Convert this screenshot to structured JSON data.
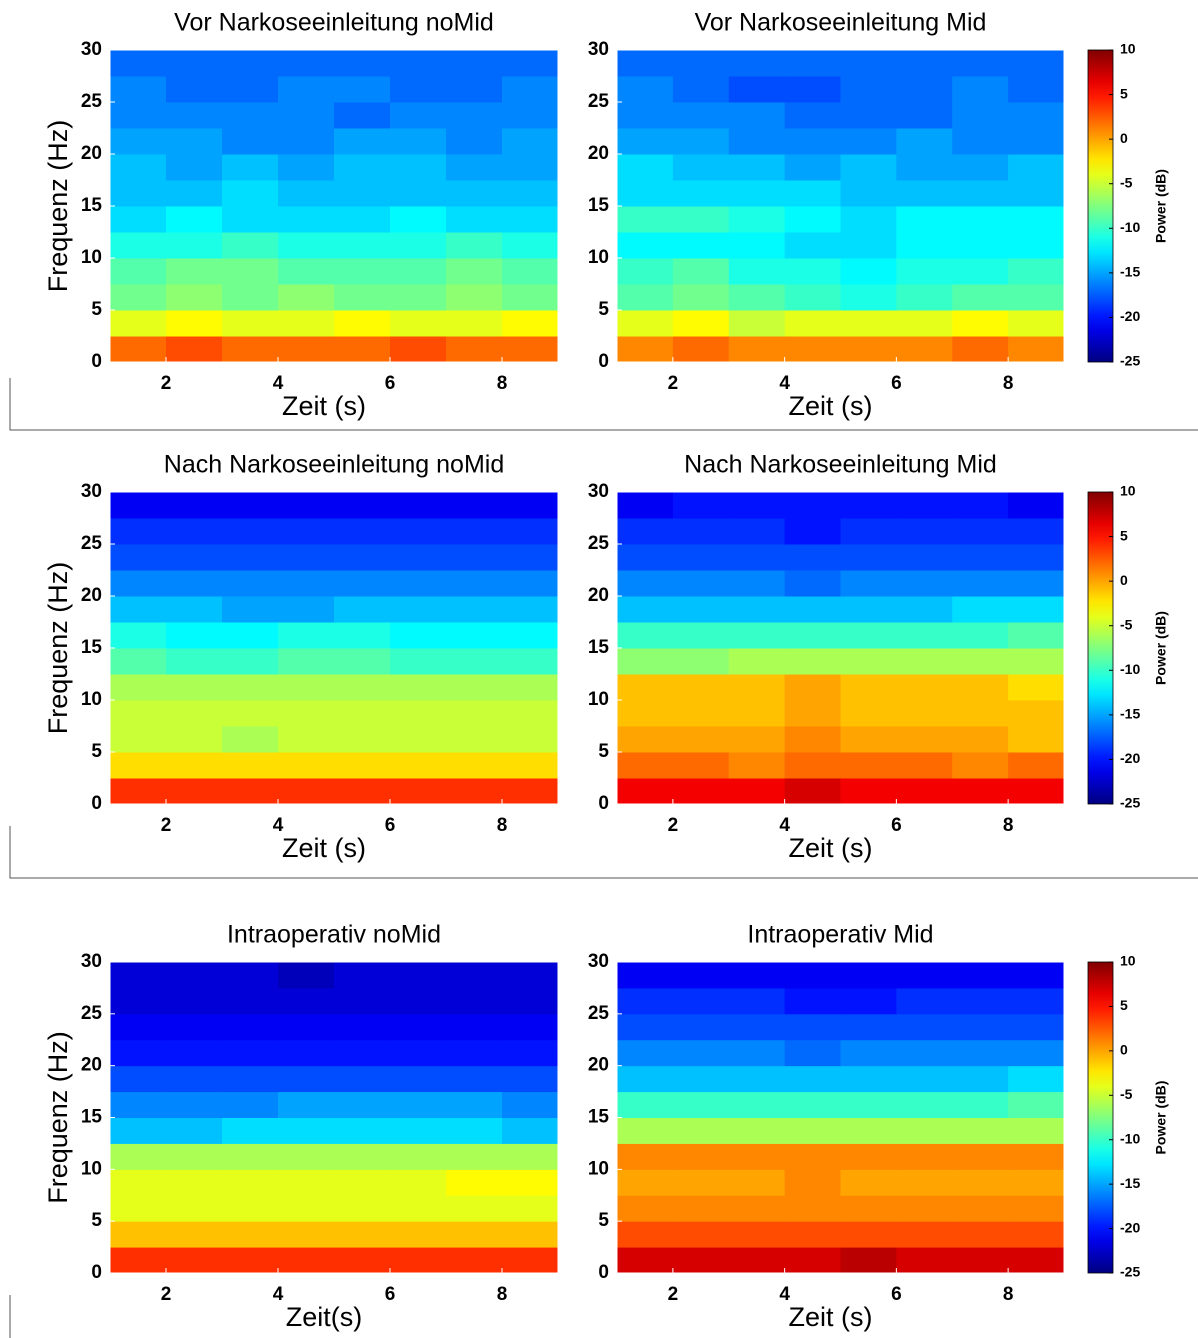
{
  "chart_data": [
    {
      "type": "heatmap",
      "title": "Vor Narkoseeinleitung noMid",
      "xlabel": "Zeit (s)",
      "ylabel": "Frequenz (Hz)",
      "colormap": "jet",
      "clim": [
        -25,
        10
      ],
      "x": [
        1.5,
        2.5,
        3.5,
        4.5,
        5.5,
        6.5,
        7.5,
        8.5
      ],
      "y": [
        1.25,
        3.75,
        6.25,
        8.75,
        11.25,
        13.75,
        16.25,
        18.75,
        21.25,
        23.75,
        26.25,
        28.75
      ],
      "xlim": [
        1,
        9
      ],
      "xticks": [
        2,
        4,
        6,
        8
      ],
      "ylim": [
        0,
        30
      ],
      "yticks": [
        0,
        5,
        10,
        15,
        20,
        25,
        30
      ],
      "values": [
        [
          2,
          3,
          2,
          2,
          2,
          3,
          2,
          2
        ],
        [
          -4,
          -3,
          -4,
          -4,
          -3,
          -4,
          -4,
          -3
        ],
        [
          -8,
          -7,
          -8,
          -7,
          -8,
          -8,
          -7,
          -8
        ],
        [
          -9,
          -8,
          -8,
          -9,
          -9,
          -9,
          -8,
          -9
        ],
        [
          -11,
          -11,
          -10,
          -11,
          -11,
          -11,
          -10,
          -11
        ],
        [
          -13,
          -12,
          -13,
          -13,
          -13,
          -12,
          -13,
          -13
        ],
        [
          -14,
          -14,
          -13,
          -14,
          -14,
          -14,
          -14,
          -14
        ],
        [
          -14,
          -15,
          -14,
          -15,
          -14,
          -14,
          -15,
          -15
        ],
        [
          -15,
          -15,
          -16,
          -16,
          -15,
          -15,
          -16,
          -15
        ],
        [
          -16,
          -16,
          -16,
          -16,
          -17,
          -16,
          -16,
          -16
        ],
        [
          -16,
          -17,
          -17,
          -16,
          -16,
          -17,
          -17,
          -16
        ],
        [
          -17,
          -17,
          -17,
          -17,
          -17,
          -17,
          -17,
          -17
        ]
      ]
    },
    {
      "type": "heatmap",
      "title": "Vor Narkoseeinleitung Mid",
      "xlabel": "Zeit (s)",
      "colormap": "jet",
      "clim": [
        -25,
        10
      ],
      "x": [
        1.5,
        2.5,
        3.5,
        4.5,
        5.5,
        6.5,
        7.5,
        8.5
      ],
      "y": [
        1.25,
        3.75,
        6.25,
        8.75,
        11.25,
        13.75,
        16.25,
        18.75,
        21.25,
        23.75,
        26.25,
        28.75
      ],
      "xlim": [
        1,
        9
      ],
      "xticks": [
        2,
        4,
        6,
        8
      ],
      "ylim": [
        0,
        30
      ],
      "yticks": [
        0,
        5,
        10,
        15,
        20,
        25,
        30
      ],
      "colorbar": {
        "label": "Power (dB)",
        "lim": [
          -25,
          10
        ],
        "ticks": [
          -25,
          -20,
          -15,
          -10,
          -5,
          0,
          5,
          10
        ]
      },
      "values": [
        [
          1,
          2,
          1,
          1,
          1,
          1,
          2,
          1
        ],
        [
          -4,
          -3,
          -5,
          -4,
          -4,
          -4,
          -3,
          -4
        ],
        [
          -9,
          -8,
          -9,
          -10,
          -11,
          -10,
          -9,
          -9
        ],
        [
          -10,
          -9,
          -11,
          -11,
          -12,
          -11,
          -11,
          -10
        ],
        [
          -12,
          -12,
          -12,
          -13,
          -13,
          -12,
          -12,
          -12
        ],
        [
          -10,
          -10,
          -11,
          -12,
          -13,
          -12,
          -12,
          -12
        ],
        [
          -13,
          -13,
          -13,
          -13,
          -14,
          -14,
          -14,
          -14
        ],
        [
          -13,
          -14,
          -14,
          -15,
          -14,
          -15,
          -15,
          -14
        ],
        [
          -15,
          -15,
          -16,
          -16,
          -16,
          -15,
          -16,
          -16
        ],
        [
          -16,
          -16,
          -16,
          -17,
          -17,
          -17,
          -16,
          -16
        ],
        [
          -16,
          -17,
          -18,
          -18,
          -17,
          -17,
          -16,
          -17
        ],
        [
          -17,
          -17,
          -17,
          -17,
          -17,
          -17,
          -17,
          -17
        ]
      ]
    },
    {
      "type": "heatmap",
      "title": "Nach Narkoseeinleitung noMid",
      "xlabel": "Zeit (s)",
      "ylabel": "Frequenz (Hz)",
      "colormap": "jet",
      "clim": [
        -25,
        10
      ],
      "x": [
        1.5,
        2.5,
        3.5,
        4.5,
        5.5,
        6.5,
        7.5,
        8.5
      ],
      "y": [
        1.25,
        3.75,
        6.25,
        8.75,
        11.25,
        13.75,
        16.25,
        18.75,
        21.25,
        23.75,
        26.25,
        28.75
      ],
      "xlim": [
        1,
        9
      ],
      "xticks": [
        2,
        4,
        6,
        8
      ],
      "ylim": [
        0,
        30
      ],
      "yticks": [
        0,
        5,
        10,
        15,
        20,
        25,
        30
      ],
      "values": [
        [
          4,
          4,
          4,
          4,
          4,
          4,
          4,
          4
        ],
        [
          -2,
          -2,
          -2,
          -2,
          -2,
          -2,
          -2,
          -2
        ],
        [
          -5,
          -5,
          -6,
          -5,
          -5,
          -5,
          -5,
          -5
        ],
        [
          -5,
          -5,
          -5,
          -5,
          -5,
          -5,
          -5,
          -5
        ],
        [
          -6,
          -6,
          -6,
          -6,
          -6,
          -6,
          -6,
          -6
        ],
        [
          -9,
          -10,
          -10,
          -9,
          -9,
          -10,
          -10,
          -10
        ],
        [
          -11,
          -12,
          -12,
          -11,
          -11,
          -12,
          -12,
          -12
        ],
        [
          -14,
          -14,
          -15,
          -15,
          -14,
          -14,
          -14,
          -14
        ],
        [
          -16,
          -16,
          -16,
          -16,
          -16,
          -16,
          -16,
          -16
        ],
        [
          -18,
          -18,
          -18,
          -18,
          -18,
          -18,
          -18,
          -18
        ],
        [
          -19,
          -19,
          -19,
          -19,
          -19,
          -19,
          -19,
          -19
        ],
        [
          -21,
          -21,
          -21,
          -21,
          -21,
          -21,
          -21,
          -21
        ]
      ]
    },
    {
      "type": "heatmap",
      "title": "Nach Narkoseeinleitung Mid",
      "xlabel": "Zeit (s)",
      "colormap": "jet",
      "clim": [
        -25,
        10
      ],
      "x": [
        1.5,
        2.5,
        3.5,
        4.5,
        5.5,
        6.5,
        7.5,
        8.5
      ],
      "y": [
        1.25,
        3.75,
        6.25,
        8.75,
        11.25,
        13.75,
        16.25,
        18.75,
        21.25,
        23.75,
        26.25,
        28.75
      ],
      "xlim": [
        1,
        9
      ],
      "xticks": [
        2,
        4,
        6,
        8
      ],
      "ylim": [
        0,
        30
      ],
      "yticks": [
        0,
        5,
        10,
        15,
        20,
        25,
        30
      ],
      "colorbar": {
        "label": "Power (dB)",
        "lim": [
          -25,
          10
        ],
        "ticks": [
          -25,
          -20,
          -15,
          -10,
          -5,
          0,
          5,
          10
        ]
      },
      "values": [
        [
          6,
          6,
          6,
          7,
          6,
          6,
          6,
          6
        ],
        [
          2,
          2,
          1,
          2,
          2,
          2,
          1,
          2
        ],
        [
          0,
          0,
          0,
          1,
          0,
          0,
          0,
          -1
        ],
        [
          -1,
          -1,
          -1,
          0,
          -1,
          -1,
          -1,
          -1
        ],
        [
          -1,
          -1,
          -1,
          0,
          -1,
          -1,
          -1,
          -2
        ],
        [
          -7,
          -7,
          -6,
          -6,
          -6,
          -6,
          -6,
          -6
        ],
        [
          -10,
          -10,
          -10,
          -10,
          -10,
          -10,
          -10,
          -9
        ],
        [
          -14,
          -14,
          -14,
          -14,
          -14,
          -14,
          -13,
          -13
        ],
        [
          -16,
          -16,
          -16,
          -17,
          -16,
          -16,
          -16,
          -16
        ],
        [
          -18,
          -18,
          -18,
          -18,
          -18,
          -18,
          -18,
          -18
        ],
        [
          -19,
          -19,
          -19,
          -20,
          -19,
          -19,
          -19,
          -19
        ],
        [
          -21,
          -20,
          -20,
          -20,
          -20,
          -20,
          -20,
          -21
        ]
      ]
    },
    {
      "type": "heatmap",
      "title": "Intraoperativ noMid",
      "xlabel": "Zeit(s)",
      "ylabel": "Frequenz (Hz)",
      "colormap": "jet",
      "clim": [
        -25,
        10
      ],
      "x": [
        1.5,
        2.5,
        3.5,
        4.5,
        5.5,
        6.5,
        7.5,
        8.5
      ],
      "y": [
        1.25,
        3.75,
        6.25,
        8.75,
        11.25,
        13.75,
        16.25,
        18.75,
        21.25,
        23.75,
        26.25,
        28.75
      ],
      "xlim": [
        1,
        9
      ],
      "xticks": [
        2,
        4,
        6,
        8
      ],
      "ylim": [
        0,
        30
      ],
      "yticks": [
        0,
        5,
        10,
        15,
        20,
        25,
        30
      ],
      "values": [
        [
          4,
          4,
          4,
          4,
          4,
          4,
          4,
          4
        ],
        [
          -1,
          -1,
          -1,
          -1,
          -1,
          -1,
          -1,
          -1
        ],
        [
          -4,
          -4,
          -4,
          -4,
          -4,
          -4,
          -4,
          -4
        ],
        [
          -4,
          -4,
          -4,
          -4,
          -4,
          -4,
          -3,
          -3
        ],
        [
          -6,
          -6,
          -6,
          -6,
          -6,
          -6,
          -6,
          -6
        ],
        [
          -14,
          -14,
          -13,
          -13,
          -13,
          -13,
          -13,
          -14
        ],
        [
          -16,
          -16,
          -16,
          -15,
          -15,
          -15,
          -15,
          -16
        ],
        [
          -18,
          -18,
          -18,
          -18,
          -18,
          -18,
          -18,
          -18
        ],
        [
          -20,
          -20,
          -20,
          -20,
          -20,
          -20,
          -20,
          -20
        ],
        [
          -21,
          -21,
          -21,
          -21,
          -21,
          -21,
          -21,
          -21
        ],
        [
          -22,
          -22,
          -22,
          -22,
          -22,
          -22,
          -22,
          -22
        ],
        [
          -22,
          -22,
          -22,
          -23,
          -22,
          -22,
          -22,
          -22
        ]
      ]
    },
    {
      "type": "heatmap",
      "title": "Intraoperativ Mid",
      "xlabel": "Zeit (s)",
      "colormap": "jet",
      "clim": [
        -25,
        10
      ],
      "x": [
        1.5,
        2.5,
        3.5,
        4.5,
        5.5,
        6.5,
        7.5,
        8.5
      ],
      "y": [
        1.25,
        3.75,
        6.25,
        8.75,
        11.25,
        13.75,
        16.25,
        18.75,
        21.25,
        23.75,
        26.25,
        28.75
      ],
      "xlim": [
        1,
        9
      ],
      "xticks": [
        2,
        4,
        6,
        8
      ],
      "ylim": [
        0,
        30
      ],
      "yticks": [
        0,
        5,
        10,
        15,
        20,
        25,
        30
      ],
      "colorbar": {
        "label": "Power (dB)",
        "lim": [
          -25,
          10
        ],
        "ticks": [
          -25,
          -20,
          -15,
          -10,
          -5,
          0,
          5,
          10
        ]
      },
      "values": [
        [
          7,
          7,
          7,
          7,
          8,
          7,
          7,
          7
        ],
        [
          3,
          3,
          3,
          3,
          3,
          3,
          3,
          3
        ],
        [
          1,
          1,
          1,
          1,
          1,
          1,
          1,
          1
        ],
        [
          0,
          0,
          0,
          1,
          0,
          0,
          0,
          0
        ],
        [
          1,
          1,
          1,
          1,
          1,
          1,
          1,
          1
        ],
        [
          -6,
          -6,
          -6,
          -6,
          -6,
          -6,
          -6,
          -6
        ],
        [
          -10,
          -10,
          -10,
          -10,
          -10,
          -10,
          -10,
          -9
        ],
        [
          -14,
          -14,
          -14,
          -14,
          -14,
          -14,
          -14,
          -13
        ],
        [
          -16,
          -16,
          -16,
          -17,
          -16,
          -16,
          -16,
          -16
        ],
        [
          -18,
          -18,
          -18,
          -18,
          -18,
          -18,
          -18,
          -18
        ],
        [
          -19,
          -19,
          -19,
          -20,
          -20,
          -19,
          -19,
          -19
        ],
        [
          -21,
          -21,
          -21,
          -21,
          -21,
          -21,
          -21,
          -21
        ]
      ]
    }
  ]
}
